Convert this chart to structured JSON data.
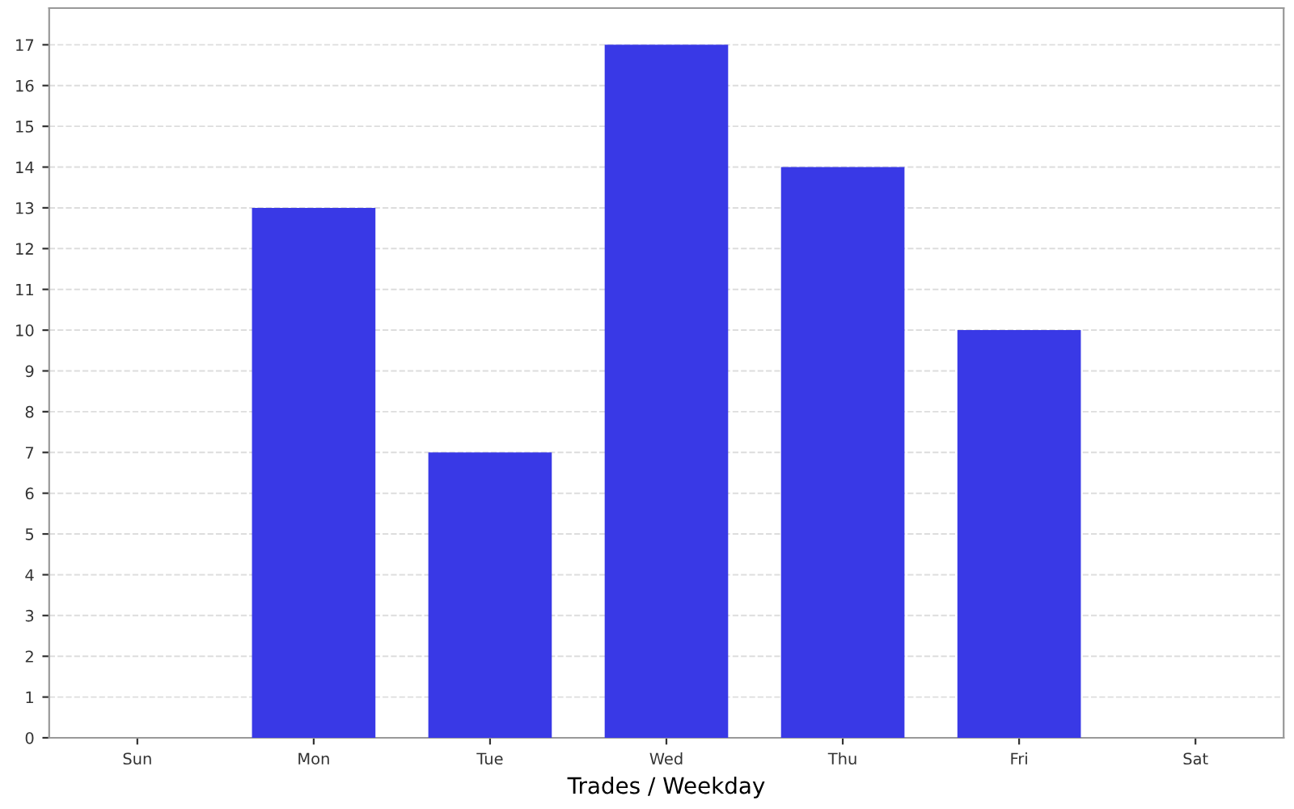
{
  "chart_data": {
    "type": "bar",
    "xlabel": "Trades / Weekday",
    "categories": [
      "Sun",
      "Mon",
      "Tue",
      "Wed",
      "Thu",
      "Fri",
      "Sat"
    ],
    "values": [
      0,
      13,
      7,
      17,
      14,
      10,
      0
    ],
    "color": "#3939e6",
    "ylim": [
      0,
      17.9
    ],
    "yticks": [
      0,
      1,
      2,
      3,
      4,
      5,
      6,
      7,
      8,
      9,
      10,
      11,
      12,
      13,
      14,
      15,
      16,
      17
    ],
    "grid": "y",
    "line_style": "dashed"
  }
}
